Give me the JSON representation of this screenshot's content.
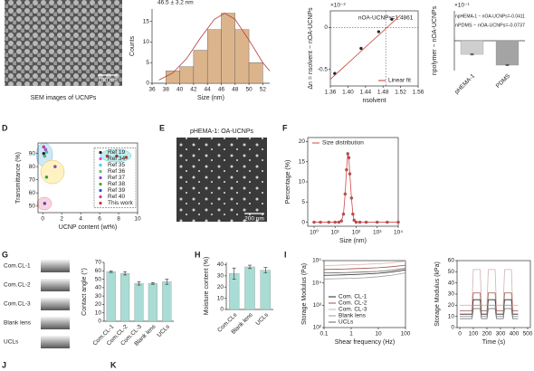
{
  "panels": [
    "D",
    "E",
    "F",
    "G",
    "H",
    "I",
    "J",
    "K"
  ],
  "images": {
    "sem": {
      "scale_bar": "100 nm",
      "caption": "SEM images of UCNPs"
    },
    "tem": {
      "title": "pHEMA-1: OA-UCNPs",
      "scale_bar": "200 nm"
    },
    "droplets": [
      "Com.CL-1",
      "Com.CL-2",
      "Com.CL-3",
      "Blank lens",
      "UCLs"
    ]
  },
  "chart_data": [
    {
      "type": "histogram",
      "title": "46.5 ± 3.2 nm",
      "x_label": "Size (nm)",
      "y_label": "Counts",
      "bins": [
        38,
        40,
        42,
        44,
        46,
        48,
        50,
        52
      ],
      "values": [
        3,
        4,
        8,
        13,
        17,
        13,
        5
      ],
      "color": "#dcb48c",
      "xlim": [
        36,
        53
      ],
      "xticks": [
        36,
        38,
        40,
        42,
        44,
        46,
        48,
        50,
        52
      ],
      "ylim": [
        0,
        18
      ],
      "yticks": [
        0,
        5,
        10,
        15
      ],
      "fit_curve": {
        "color": "#b03a3a",
        "x": [
          37,
          39,
          41,
          43,
          45,
          46.5,
          48,
          50,
          52,
          53
        ],
        "values": [
          0.8,
          2.5,
          6,
          11,
          15.5,
          17,
          15.5,
          10.5,
          5,
          3
        ]
      }
    },
    {
      "type": "scatter",
      "multiplier": "×10⁻²",
      "x_label": "nsolvent",
      "y_label": "Δn = nsolvent − nOA-UCNPs",
      "annotation": "nOA-UCNPs=1.4861",
      "ref_x": 1.4861,
      "ref_y": 0,
      "xlim": [
        1.36,
        1.56
      ],
      "xticks": [
        1.36,
        {
          "value": 1.4,
          "label": "1.40"
        },
        1.44,
        1.48,
        1.52,
        1.56
      ],
      "ylim": [
        -0.7,
        0.2
      ],
      "yticks": [
        -0.5,
        0
      ],
      "frame": true,
      "legend": "lower-right",
      "series": [
        {
          "color": "#222222",
          "mode": "markers",
          "x": [
            1.37,
            1.43,
            1.47,
            1.5
          ],
          "values": [
            -0.55,
            -0.25,
            -0.05,
            0.1
          ]
        },
        {
          "name": "Linear fit",
          "color": "#c0392b",
          "mode": "line",
          "x": [
            1.36,
            1.52
          ],
          "values": [
            -0.62,
            0.15
          ]
        }
      ]
    },
    {
      "type": "bar",
      "multiplier": "×10⁻¹",
      "y_label": "npolymer − nOA-UCNPs",
      "annotations": [
        "npHEMA-1 − nOA-UCNPs=-0.0411",
        "nPDMS − nOA-UCNPs=-0.0737"
      ],
      "categories": [
        "pHEMA-1",
        "PDMS"
      ],
      "values": [
        -0.411,
        -0.737
      ],
      "errors": [
        0.02,
        0.02
      ],
      "colors": [
        "#cfcfcf",
        "#a4a4a4"
      ],
      "ylim": [
        -0.9,
        0.9
      ]
    },
    {
      "type": "scatter",
      "x_label": "UCNP content (wt%)",
      "y_label": "Transmittance (%)",
      "xlim": [
        -0.5,
        10
      ],
      "xticks": [
        0,
        2,
        4,
        6,
        8,
        10
      ],
      "ylim": [
        45,
        98
      ],
      "yticks": [
        50,
        60,
        70,
        80,
        90
      ],
      "frame": true,
      "legend": "right",
      "series": [
        {
          "name": "Ref 19",
          "color": "#222222",
          "mode": "markers",
          "x": [
            0.1
          ],
          "values": [
            90
          ]
        },
        {
          "name": "Ref 34",
          "color": "#e040e0",
          "mode": "markers",
          "x": [
            0.3
          ],
          "values": [
            93
          ]
        },
        {
          "name": "Ref 35",
          "color": "#40d0e0",
          "mode": "markers",
          "x": [
            0.4
          ],
          "values": [
            91
          ]
        },
        {
          "name": "Ref 36",
          "color": "#60c060",
          "mode": "markers",
          "x": [
            0.2
          ],
          "values": [
            88
          ]
        },
        {
          "name": "Ref 37",
          "color": "#9040c0",
          "mode": "markers",
          "x": [
            1.3
          ],
          "values": [
            80
          ]
        },
        {
          "name": "Ref 38",
          "color": "#30b030",
          "mode": "markers",
          "x": [
            0.4
          ],
          "values": [
            72
          ]
        },
        {
          "name": "Ref 39",
          "color": "#3050d0",
          "mode": "markers",
          "x": [
            0.2
          ],
          "values": [
            52
          ]
        },
        {
          "name": "Ref 40",
          "color": "#c040a0",
          "mode": "markers",
          "x": [
            0.1
          ],
          "values": [
            95
          ]
        },
        {
          "name": "This work",
          "color": "#d03030",
          "mode": "markers",
          "x": [
            6.8,
            7.8,
            8.8
          ],
          "values": [
            88,
            88,
            87
          ]
        }
      ]
    },
    {
      "type": "line",
      "x_label": "Size (nm)",
      "y_label": "Percentage (%)",
      "x_scale": "log",
      "xlim": [
        0.5,
        10000
      ],
      "xticks": [
        {
          "value": 1,
          "label": "10⁰"
        },
        {
          "value": 10,
          "label": "10¹"
        },
        {
          "value": 100,
          "label": "10²"
        },
        {
          "value": 1000,
          "label": "10³"
        },
        {
          "value": 10000,
          "label": "10⁴"
        }
      ],
      "ylim": [
        -1,
        21
      ],
      "yticks": [
        0,
        5,
        10,
        15,
        20
      ],
      "frame": true,
      "legend": "upper-left",
      "series": [
        {
          "name": "Size distribution",
          "color": "#d0494a",
          "mode": "lines+markers",
          "x": [
            1,
            2,
            5,
            10,
            15,
            20,
            25,
            30,
            35,
            40,
            45,
            50,
            60,
            70,
            80,
            100,
            150,
            300,
            1000,
            3000,
            10000
          ],
          "values": [
            0,
            0,
            0,
            0,
            0,
            0.3,
            2,
            7,
            13,
            17,
            16,
            12,
            6,
            2,
            0.5,
            0,
            0,
            0,
            0,
            0,
            0
          ]
        }
      ]
    },
    {
      "type": "bar",
      "y_label": "Contact angle (°)",
      "categories": [
        "Com.CL-1",
        "Com.CL-2",
        "Com.CL-3",
        "Blank lens",
        "UCLs"
      ],
      "values": [
        59,
        57,
        45,
        45,
        47
      ],
      "errors": [
        1,
        2,
        2,
        1,
        3
      ],
      "color": "#a8dcd4",
      "ylim": [
        0,
        70
      ],
      "yticks": [
        0,
        10,
        20,
        30,
        40,
        50,
        60,
        70
      ]
    },
    {
      "type": "bar",
      "y_label": "Moisture content (%)",
      "categories": [
        "Com.CLs",
        "Blank lens",
        "UCLs"
      ],
      "values": [
        32,
        38,
        35
      ],
      "errors": [
        5,
        1.5,
        2.5
      ],
      "color": "#a8dcd4",
      "ylim": [
        0,
        42
      ],
      "yticks": [
        0,
        10,
        20,
        30,
        40
      ]
    },
    {
      "type": "line",
      "x_label": "Shear frequency (Hz)",
      "y_label": "Storage Modulus (Pa)",
      "x_scale": "log",
      "y_scale": "log",
      "xlim": [
        0.1,
        100
      ],
      "xticks": [
        0.1,
        1,
        10,
        100
      ],
      "ylim": [
        100,
        100000
      ],
      "yticks": [
        {
          "value": 100,
          "label": "10²"
        },
        {
          "value": 1000,
          "label": "10³"
        },
        {
          "value": 10000,
          "label": "10⁴"
        },
        {
          "value": 100000,
          "label": "10⁵"
        }
      ],
      "frame": true,
      "legend": "lower-left",
      "x": [
        0.1,
        0.3,
        1,
        3,
        10,
        30,
        100
      ],
      "series": [
        {
          "name": "Com. CL-1",
          "color": "#222222",
          "mode": "line",
          "values": [
            22000,
            22500,
            23500,
            25000,
            27000,
            31000,
            38000
          ]
        },
        {
          "name": "Com. CL-2",
          "color": "#a0524a",
          "mode": "line",
          "values": [
            40000,
            41000,
            43000,
            45000,
            48000,
            53000,
            62000
          ]
        },
        {
          "name": "Com. CL-3",
          "color": "#d4b0b0",
          "mode": "line",
          "values": [
            60000,
            62000,
            65000,
            68000,
            72000,
            80000,
            95000
          ]
        },
        {
          "name": "Blank lens",
          "color": "#999999",
          "mode": "line",
          "values": [
            15000,
            15500,
            16000,
            17000,
            19000,
            22000,
            28000
          ]
        },
        {
          "name": "UCLs",
          "color": "#666666",
          "mode": "line",
          "values": [
            28000,
            28500,
            29500,
            31000,
            33000,
            37000,
            45000
          ]
        }
      ]
    },
    {
      "type": "line",
      "x_label": "Time (s)",
      "y_label": "Storage Modulus (kPa)",
      "xlim": [
        -20,
        520
      ],
      "xticks": [
        0,
        100,
        200,
        300,
        400,
        500
      ],
      "ylim": [
        0,
        60
      ],
      "yticks": [
        0,
        10,
        20,
        30,
        40,
        50,
        60
      ],
      "frame": true,
      "x": [
        0,
        90,
        100,
        150,
        160,
        200,
        210,
        260,
        270,
        320,
        330,
        380,
        390,
        430
      ],
      "series": [
        {
          "color": "#222222",
          "mode": "line",
          "values": [
            12,
            12,
            25,
            25,
            12,
            12,
            25,
            25,
            12,
            12,
            25,
            25,
            12,
            12
          ]
        },
        {
          "color": "#a0524a",
          "mode": "line",
          "values": [
            15,
            15,
            31,
            31,
            15,
            15,
            31,
            31,
            15,
            15,
            31,
            31,
            15,
            15
          ]
        },
        {
          "color": "#d4b0b0",
          "mode": "line",
          "values": [
            20,
            20,
            52,
            52,
            20,
            20,
            52,
            52,
            20,
            20,
            52,
            52,
            20,
            20
          ]
        },
        {
          "color": "#999999",
          "mode": "line",
          "values": [
            10,
            10,
            20,
            20,
            10,
            10,
            20,
            20,
            10,
            10,
            20,
            20,
            10,
            10
          ]
        },
        {
          "color": "#666666",
          "mode": "line",
          "values": [
            8,
            8,
            17,
            17,
            8,
            8,
            17,
            17,
            8,
            8,
            17,
            17,
            8,
            8
          ]
        }
      ]
    }
  ]
}
